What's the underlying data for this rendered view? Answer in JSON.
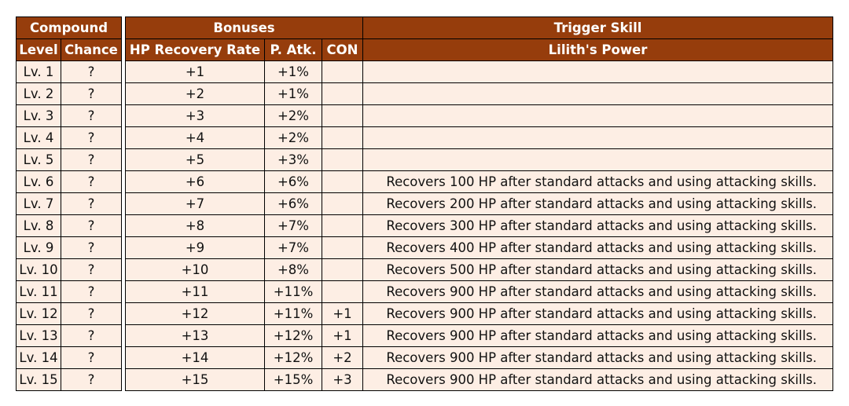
{
  "compound": {
    "title": "Compound",
    "level_header": "Level",
    "chance_header": "Chance"
  },
  "bonuses": {
    "title": "Bonuses",
    "hp_header": "HP Recovery Rate",
    "patk_header": "P. Atk.",
    "con_header": "CON"
  },
  "trigger": {
    "title": "Trigger Skill",
    "skill_name": "Lilith's Power"
  },
  "rows": [
    {
      "level": "Lv. 1",
      "chance": "?",
      "hp": "+1",
      "patk": "+1%",
      "con": "",
      "skill": ""
    },
    {
      "level": "Lv. 2",
      "chance": "?",
      "hp": "+2",
      "patk": "+1%",
      "con": "",
      "skill": ""
    },
    {
      "level": "Lv. 3",
      "chance": "?",
      "hp": "+3",
      "patk": "+2%",
      "con": "",
      "skill": ""
    },
    {
      "level": "Lv. 4",
      "chance": "?",
      "hp": "+4",
      "patk": "+2%",
      "con": "",
      "skill": ""
    },
    {
      "level": "Lv. 5",
      "chance": "?",
      "hp": "+5",
      "patk": "+3%",
      "con": "",
      "skill": ""
    },
    {
      "level": "Lv. 6",
      "chance": "?",
      "hp": "+6",
      "patk": "+6%",
      "con": "",
      "skill": "Recovers 100 HP after standard attacks and using attacking skills."
    },
    {
      "level": "Lv. 7",
      "chance": "?",
      "hp": "+7",
      "patk": "+6%",
      "con": "",
      "skill": "Recovers 200 HP after standard attacks and using attacking skills."
    },
    {
      "level": "Lv. 8",
      "chance": "?",
      "hp": "+8",
      "patk": "+7%",
      "con": "",
      "skill": "Recovers 300 HP after standard attacks and using attacking skills."
    },
    {
      "level": "Lv. 9",
      "chance": "?",
      "hp": "+9",
      "patk": "+7%",
      "con": "",
      "skill": "Recovers 400 HP after standard attacks and using attacking skills."
    },
    {
      "level": "Lv. 10",
      "chance": "?",
      "hp": "+10",
      "patk": "+8%",
      "con": "",
      "skill": "Recovers 500 HP after standard attacks and using attacking skills."
    },
    {
      "level": "Lv. 11",
      "chance": "?",
      "hp": "+11",
      "patk": "+11%",
      "con": "",
      "skill": "Recovers 900 HP after standard attacks and using attacking skills."
    },
    {
      "level": "Lv. 12",
      "chance": "?",
      "hp": "+12",
      "patk": "+11%",
      "con": "+1",
      "skill": "Recovers 900 HP after standard attacks and using attacking skills."
    },
    {
      "level": "Lv. 13",
      "chance": "?",
      "hp": "+13",
      "patk": "+12%",
      "con": "+1",
      "skill": "Recovers 900 HP after standard attacks and using attacking skills."
    },
    {
      "level": "Lv. 14",
      "chance": "?",
      "hp": "+14",
      "patk": "+12%",
      "con": "+2",
      "skill": "Recovers 900 HP after standard attacks and using attacking skills."
    },
    {
      "level": "Lv. 15",
      "chance": "?",
      "hp": "+15",
      "patk": "+15%",
      "con": "+3",
      "skill": "Recovers 900 HP after standard attacks and using attacking skills."
    }
  ]
}
